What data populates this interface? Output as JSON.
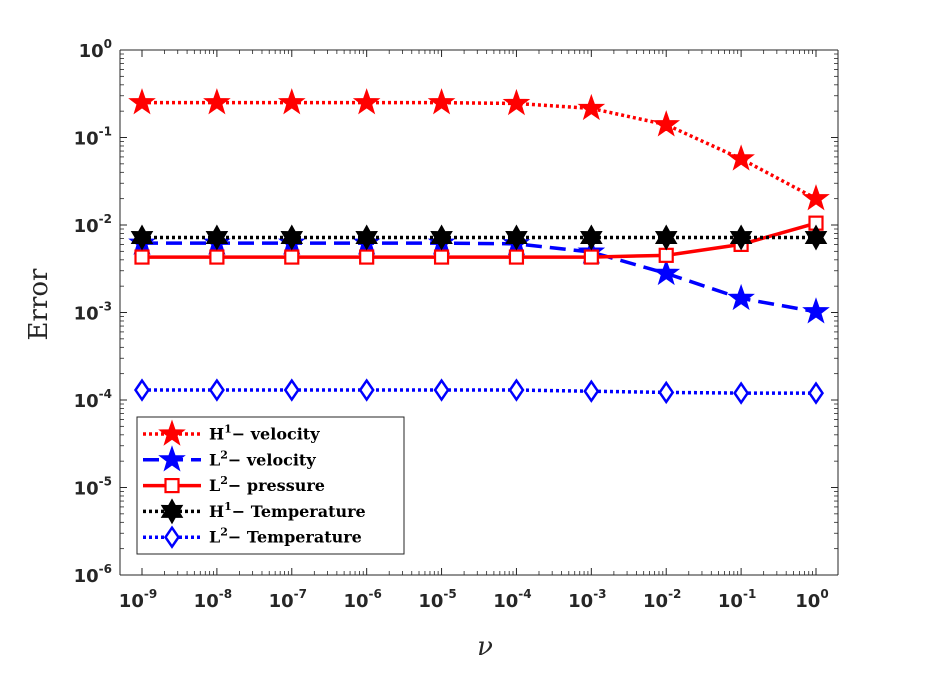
{
  "chart_data": {
    "type": "line",
    "title": "",
    "xlabel": "ν",
    "ylabel": "Error",
    "xscale": "log",
    "yscale": "log",
    "xlim": [
      1e-09,
      1
    ],
    "ylim": [
      1e-06,
      1
    ],
    "x": [
      1e-09,
      1e-08,
      1e-07,
      1e-06,
      1e-05,
      0.0001,
      0.001,
      0.01,
      0.1,
      1
    ],
    "x_tick_labels": [
      {
        "base": "10",
        "exp": "-9"
      },
      {
        "base": "10",
        "exp": "-8"
      },
      {
        "base": "10",
        "exp": "-7"
      },
      {
        "base": "10",
        "exp": "-6"
      },
      {
        "base": "10",
        "exp": "-5"
      },
      {
        "base": "10",
        "exp": "-4"
      },
      {
        "base": "10",
        "exp": "-3"
      },
      {
        "base": "10",
        "exp": "-2"
      },
      {
        "base": "10",
        "exp": "-1"
      },
      {
        "base": "10",
        "exp": "0"
      }
    ],
    "y_tick_labels": [
      {
        "value": 1e-06,
        "base": "10",
        "exp": "-6"
      },
      {
        "value": 1e-05,
        "base": "10",
        "exp": "-5"
      },
      {
        "value": 0.0001,
        "base": "10",
        "exp": "-4"
      },
      {
        "value": 0.001,
        "base": "10",
        "exp": "-3"
      },
      {
        "value": 0.01,
        "base": "10",
        "exp": "-2"
      },
      {
        "value": 0.1,
        "base": "10",
        "exp": "-1"
      },
      {
        "value": 1,
        "base": "10",
        "exp": "0"
      }
    ],
    "legend_position": "bottom-left",
    "series": [
      {
        "name": "H1- velocity",
        "label_main": "H",
        "label_sup": "1",
        "label_rest": "− velocity",
        "color": "#ff0000",
        "dash": "dotted",
        "marker": "star",
        "values": [
          0.25,
          0.25,
          0.25,
          0.25,
          0.25,
          0.245,
          0.215,
          0.14,
          0.057,
          0.02
        ]
      },
      {
        "name": "L2- velocity",
        "label_main": "L",
        "label_sup": "2",
        "label_rest": "− velocity",
        "color": "#0000ff",
        "dash": "dashed",
        "marker": "star",
        "values": [
          0.0062,
          0.0062,
          0.0062,
          0.0062,
          0.0062,
          0.0061,
          0.0049,
          0.0028,
          0.00145,
          0.00102
        ]
      },
      {
        "name": "L2- pressure",
        "label_main": "L",
        "label_sup": "2",
        "label_rest": "− pressure",
        "color": "#ff0000",
        "dash": "solid",
        "marker": "square",
        "values": [
          0.0043,
          0.0043,
          0.0043,
          0.0043,
          0.0043,
          0.0043,
          0.0043,
          0.0045,
          0.006,
          0.0105
        ]
      },
      {
        "name": "H1- Temperature",
        "label_main": "H",
        "label_sup": "1",
        "label_rest": "− Temperature",
        "color": "#000000",
        "dash": "dotted",
        "marker": "hexagram",
        "values": [
          0.0072,
          0.0072,
          0.0072,
          0.0072,
          0.0072,
          0.0072,
          0.0072,
          0.0072,
          0.0072,
          0.0072
        ]
      },
      {
        "name": "L2- Temperature",
        "label_main": "L",
        "label_sup": "2",
        "label_rest": "− Temperature",
        "color": "#0000ff",
        "dash": "dotted",
        "marker": "diamond",
        "values": [
          0.00013,
          0.00013,
          0.00013,
          0.00013,
          0.00013,
          0.00013,
          0.000126,
          0.000122,
          0.00012,
          0.00012
        ]
      }
    ]
  }
}
